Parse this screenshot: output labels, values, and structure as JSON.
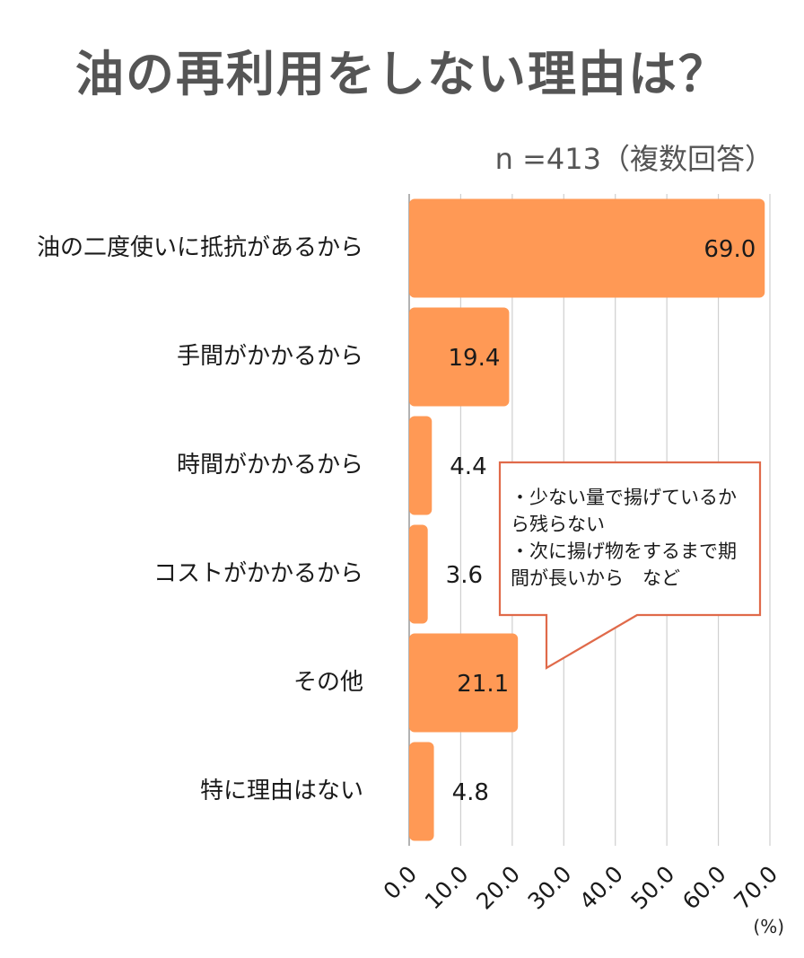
{
  "chart_data": {
    "type": "bar",
    "orientation": "horizontal",
    "title": "油の再利用をしない理由は？",
    "subtitle": "n =413（複数回答）",
    "unit": "(%)",
    "categories": [
      "油の二度使いに抵抗があるから",
      "手間がかかるから",
      "時間がかかるから",
      "コストがかかるから",
      "その他",
      "特に理由はない"
    ],
    "values": [
      69.0,
      19.4,
      4.4,
      3.6,
      21.1,
      4.8
    ],
    "data_labels": [
      "69.0",
      "19.4",
      "4.4",
      "3.6",
      "21.1",
      "4.8"
    ],
    "xlim": [
      0,
      70
    ],
    "x_ticks": [
      "0.0",
      "10.0",
      "20.0",
      "30.0",
      "40.0",
      "50.0",
      "60.0",
      "70.0"
    ],
    "grid": true,
    "bar_color": "#ff9955"
  },
  "callout": {
    "lines": [
      "・少ない量で揚げているか",
      "ら残らない",
      "・次に揚げ物をするまで期",
      "間が長いから　など"
    ],
    "border_color": "#e06a4a"
  }
}
